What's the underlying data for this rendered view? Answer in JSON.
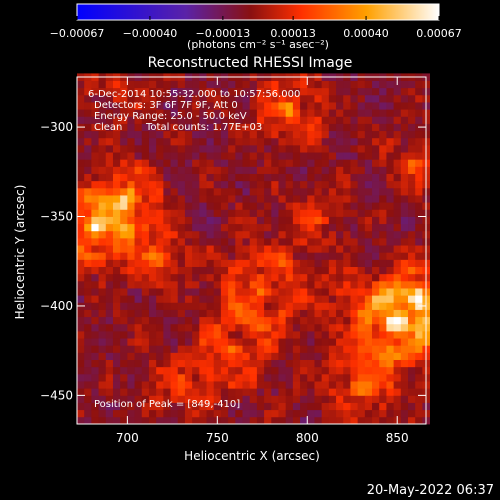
{
  "chart_data": {
    "type": "heatmap",
    "title": "Reconstructed RHESSI Image",
    "xlabel": "Heliocentric X (arcsec)",
    "ylabel": "Heliocentric Y (arcsec)",
    "xlim": [
      672,
      866
    ],
    "ylim": [
      -466,
      -272
    ],
    "xticks": [
      700,
      750,
      800,
      850
    ],
    "yticks": [
      -300,
      -350,
      -400,
      -450
    ],
    "grid": false,
    "colorbar": {
      "placement": "top",
      "range": [
        -0.00067,
        0.00067
      ],
      "ticks": [
        "-0.00067",
        "-0.00040",
        "-0.00013",
        "0.00013",
        "0.00040",
        "0.00067"
      ],
      "tick_values": [
        -0.00067,
        -0.0004,
        -0.00013,
        0.00013,
        0.0004,
        0.00067
      ],
      "units": "(photons cm⁻² s⁻¹ asec⁻²)",
      "colors": [
        "#0000ff",
        "#5a22a8",
        "#8a1010",
        "#ff3000",
        "#ffa000",
        "#ffffff"
      ]
    },
    "annotations": {
      "time_range": "6-Dec-2014 10:55:32.000 to 10:57:56.000",
      "detectors": "Detectors: 3F 6F 7F 9F, Att 0",
      "energy": "Energy Range: 25.0 - 50.0 keV",
      "method": "Clean",
      "counts": "Total counts: 1.77E+03",
      "peak": "Position of Peak = [849,-410]"
    },
    "sources": [
      {
        "x": 682,
        "y": -356,
        "value": 0.00058,
        "sigma": 14
      },
      {
        "x": 700,
        "y": -340,
        "value": 0.0005,
        "sigma": 12
      },
      {
        "x": 716,
        "y": -372,
        "value": 0.0004,
        "sigma": 10
      },
      {
        "x": 849,
        "y": -410,
        "value": 0.00067,
        "sigma": 16
      },
      {
        "x": 862,
        "y": -395,
        "value": 0.00045,
        "sigma": 12
      },
      {
        "x": 830,
        "y": -445,
        "value": 0.00036,
        "sigma": 12
      },
      {
        "x": 790,
        "y": -290,
        "value": 0.00042,
        "sigma": 12
      },
      {
        "x": 775,
        "y": -390,
        "value": 0.00034,
        "sigma": 18
      },
      {
        "x": 760,
        "y": -425,
        "value": 0.0003,
        "sigma": 14
      },
      {
        "x": 730,
        "y": -445,
        "value": 0.00028,
        "sigma": 12
      },
      {
        "x": 805,
        "y": -350,
        "value": 0.00026,
        "sigma": 10
      },
      {
        "x": 860,
        "y": -320,
        "value": 0.0003,
        "sigma": 10
      },
      {
        "x": 693,
        "y": -280,
        "value": 0.0002,
        "sigma": 10
      },
      {
        "x": 822,
        "y": -390,
        "value": 0.0002,
        "sigma": 8
      }
    ]
  },
  "footer": {
    "timestamp": "20-May-2022 06:37"
  }
}
